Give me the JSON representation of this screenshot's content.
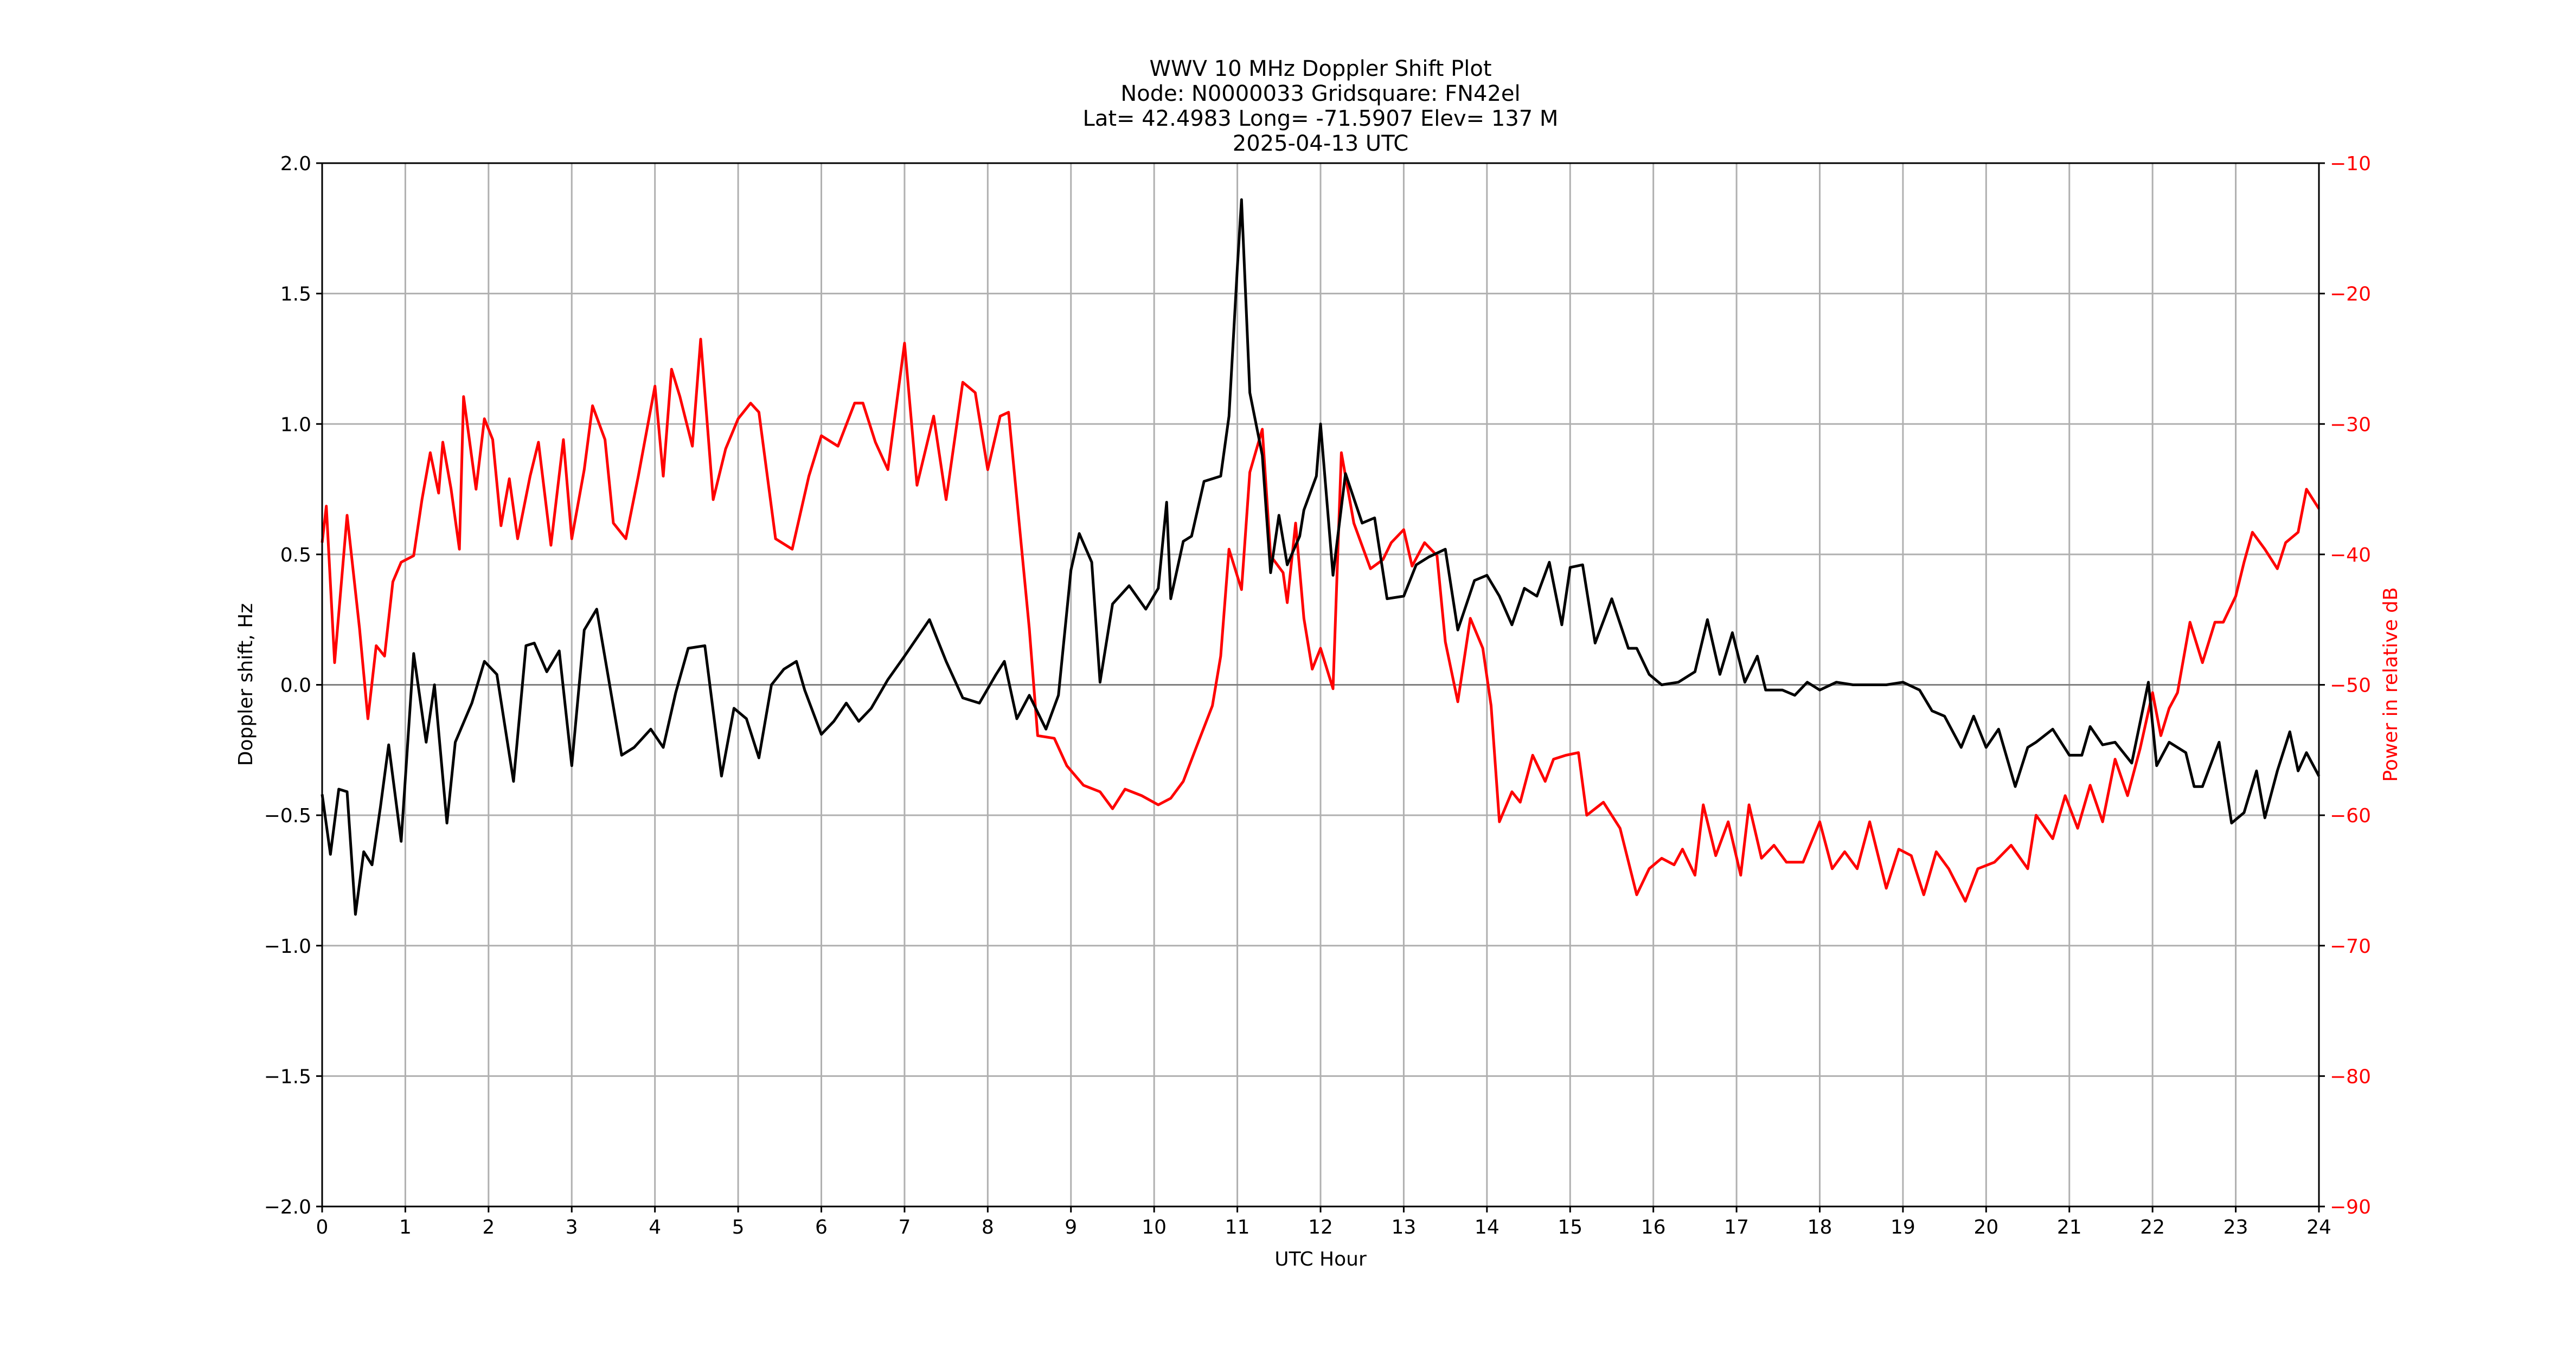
{
  "chart_data": {
    "type": "line",
    "title": "WWV 10 MHz Doppler Shift Plot",
    "subtitle_lines": [
      "Node:  N0000033     Gridsquare:  FN42el",
      "Lat= 42.4983    Long= -71.5907    Elev= 137 M",
      "2025-04-13  UTC"
    ],
    "xlabel": "UTC Hour",
    "ylabel": "Doppler shift, Hz",
    "y2label": "Power in relative dB",
    "xlim": [
      0,
      24
    ],
    "ylim": [
      -2.0,
      2.0
    ],
    "y2lim": [
      -90,
      -10
    ],
    "xticks": [
      0,
      1,
      2,
      3,
      4,
      5,
      6,
      7,
      8,
      9,
      10,
      11,
      12,
      13,
      14,
      15,
      16,
      17,
      18,
      19,
      20,
      21,
      22,
      23,
      24
    ],
    "yticks": [
      "2.0",
      "1.5",
      "1.0",
      "0.5",
      "0.0",
      "−0.5",
      "−1.0",
      "−1.5",
      "−2.0"
    ],
    "y2ticks": [
      "−10",
      "−20",
      "−30",
      "−40",
      "−50",
      "−60",
      "−70",
      "−80",
      "−90"
    ],
    "grid": true,
    "colors": {
      "doppler": "#000000",
      "power": "#ff0000",
      "grid": "#b0b0b0",
      "zero_line": "#808080"
    },
    "series": [
      {
        "name": "Doppler shift (Hz)",
        "axis": "left",
        "color": "#000000",
        "x": [
          0,
          0.1,
          0.2,
          0.3,
          0.4,
          0.5,
          0.6,
          0.7,
          0.8,
          0.95,
          1.1,
          1.25,
          1.35,
          1.5,
          1.6,
          1.8,
          1.95,
          2.1,
          2.3,
          2.45,
          2.55,
          2.7,
          2.85,
          3.0,
          3.15,
          3.3,
          3.45,
          3.6,
          3.75,
          3.95,
          4.1,
          4.25,
          4.4,
          4.6,
          4.8,
          4.95,
          5.1,
          5.25,
          5.4,
          5.55,
          5.7,
          5.8,
          6.0,
          6.15,
          6.3,
          6.45,
          6.6,
          6.8,
          7.0,
          7.3,
          7.5,
          7.7,
          7.9,
          8.1,
          8.2,
          8.35,
          8.5,
          8.7,
          8.85,
          9.0,
          9.1,
          9.25,
          9.35,
          9.5,
          9.7,
          9.9,
          10.05,
          10.15,
          10.2,
          10.35,
          10.45,
          10.6,
          10.8,
          10.9,
          11.0,
          11.05,
          11.15,
          11.3,
          11.4,
          11.5,
          11.6,
          11.75,
          11.8,
          11.95,
          12.0,
          12.15,
          12.3,
          12.5,
          12.65,
          12.8,
          13.0,
          13.15,
          13.3,
          13.5,
          13.65,
          13.85,
          14.0,
          14.15,
          14.3,
          14.45,
          14.6,
          14.75,
          14.9,
          15.0,
          15.15,
          15.3,
          15.5,
          15.7,
          15.8,
          15.95,
          16.1,
          16.3,
          16.5,
          16.65,
          16.8,
          16.95,
          17.1,
          17.25,
          17.35,
          17.55,
          17.7,
          17.85,
          18.0,
          18.2,
          18.4,
          18.6,
          18.8,
          19.0,
          19.2,
          19.35,
          19.5,
          19.7,
          19.85,
          20.0,
          20.15,
          20.35,
          20.5,
          20.6,
          20.8,
          21.0,
          21.15,
          21.25,
          21.4,
          21.55,
          21.75,
          21.95,
          22.05,
          22.2,
          22.4,
          22.5,
          22.6,
          22.8,
          22.95,
          23.1,
          23.25,
          23.35,
          23.5,
          23.65,
          23.75,
          23.85,
          24.0
        ],
        "values": [
          -0.42,
          -0.65,
          -0.4,
          -0.41,
          -0.88,
          -0.64,
          -0.69,
          -0.47,
          -0.23,
          -0.6,
          0.12,
          -0.22,
          0.0,
          -0.53,
          -0.22,
          -0.07,
          0.09,
          0.04,
          -0.37,
          0.15,
          0.16,
          0.05,
          0.13,
          -0.31,
          0.21,
          0.29,
          0.01,
          -0.27,
          -0.24,
          -0.17,
          -0.24,
          -0.03,
          0.14,
          0.15,
          -0.35,
          -0.09,
          -0.13,
          -0.28,
          0.0,
          0.06,
          0.09,
          -0.02,
          -0.19,
          -0.14,
          -0.07,
          -0.14,
          -0.09,
          0.02,
          0.11,
          0.25,
          0.09,
          -0.05,
          -0.07,
          0.04,
          0.09,
          -0.13,
          -0.04,
          -0.17,
          -0.04,
          0.44,
          0.58,
          0.47,
          0.01,
          0.31,
          0.38,
          0.29,
          0.37,
          0.7,
          0.33,
          0.55,
          0.57,
          0.78,
          0.8,
          1.03,
          1.6,
          1.86,
          1.12,
          0.88,
          0.43,
          0.65,
          0.46,
          0.57,
          0.67,
          0.8,
          1.0,
          0.42,
          0.81,
          0.62,
          0.64,
          0.33,
          0.34,
          0.46,
          0.49,
          0.52,
          0.21,
          0.4,
          0.42,
          0.34,
          0.23,
          0.37,
          0.34,
          0.47,
          0.23,
          0.45,
          0.46,
          0.16,
          0.33,
          0.14,
          0.14,
          0.04,
          0.0,
          0.01,
          0.05,
          0.25,
          0.04,
          0.2,
          0.01,
          0.11,
          -0.02,
          -0.02,
          -0.04,
          0.01,
          -0.02,
          0.01,
          0.0,
          0.0,
          0.0,
          0.01,
          -0.02,
          -0.1,
          -0.12,
          -0.24,
          -0.12,
          -0.24,
          -0.17,
          -0.39,
          -0.24,
          -0.22,
          -0.17,
          -0.27,
          -0.27,
          -0.16,
          -0.23,
          -0.22,
          -0.3,
          0.01,
          -0.31,
          -0.22,
          -0.26,
          -0.39,
          -0.39,
          -0.22,
          -0.53,
          -0.49,
          -0.33,
          -0.51,
          -0.33,
          -0.18,
          -0.33,
          -0.26,
          -0.35
        ]
      },
      {
        "name": "Power (relative dB)",
        "axis": "right",
        "color": "#ff0000",
        "x": [
          0,
          0.05,
          0.15,
          0.3,
          0.45,
          0.55,
          0.65,
          0.75,
          0.85,
          0.95,
          1.1,
          1.2,
          1.3,
          1.4,
          1.45,
          1.55,
          1.65,
          1.7,
          1.85,
          1.95,
          2.05,
          2.15,
          2.25,
          2.35,
          2.5,
          2.6,
          2.75,
          2.9,
          3.0,
          3.15,
          3.25,
          3.4,
          3.5,
          3.65,
          3.8,
          4.0,
          4.1,
          4.2,
          4.3,
          4.45,
          4.55,
          4.7,
          4.85,
          5.0,
          5.15,
          5.25,
          5.45,
          5.65,
          5.85,
          6.0,
          6.2,
          6.4,
          6.5,
          6.65,
          6.8,
          7.0,
          7.15,
          7.35,
          7.5,
          7.7,
          7.85,
          8.0,
          8.15,
          8.25,
          8.5,
          8.6,
          8.8,
          8.95,
          9.15,
          9.35,
          9.5,
          9.65,
          9.85,
          10.05,
          10.2,
          10.35,
          10.5,
          10.7,
          10.8,
          10.9,
          11.05,
          11.15,
          11.3,
          11.4,
          11.55,
          11.6,
          11.7,
          11.8,
          11.9,
          12.0,
          12.15,
          12.25,
          12.4,
          12.6,
          12.75,
          12.85,
          13.0,
          13.1,
          13.25,
          13.4,
          13.5,
          13.65,
          13.8,
          13.95,
          14.05,
          14.15,
          14.3,
          14.4,
          14.55,
          14.7,
          14.8,
          14.95,
          15.1,
          15.2,
          15.4,
          15.6,
          15.8,
          15.95,
          16.1,
          16.25,
          16.35,
          16.5,
          16.6,
          16.75,
          16.9,
          17.05,
          17.15,
          17.3,
          17.45,
          17.6,
          17.8,
          18.0,
          18.15,
          18.3,
          18.45,
          18.6,
          18.8,
          18.95,
          19.1,
          19.25,
          19.4,
          19.55,
          19.75,
          19.9,
          20.1,
          20.3,
          20.5,
          20.6,
          20.8,
          20.95,
          21.1,
          21.25,
          21.4,
          21.55,
          21.7,
          21.85,
          22.0,
          22.1,
          22.2,
          22.3,
          22.45,
          22.6,
          22.75,
          22.85,
          23.0,
          23.1,
          23.2,
          23.35,
          23.5,
          23.6,
          23.75,
          23.85,
          24.0
        ],
        "values": [
          -39.1,
          -36.3,
          -48.3,
          -37.0,
          -45.7,
          -52.6,
          -47.0,
          -47.8,
          -42.1,
          -40.6,
          -40.1,
          -35.8,
          -32.2,
          -35.3,
          -31.4,
          -35.0,
          -39.6,
          -27.9,
          -35.0,
          -29.6,
          -31.2,
          -37.8,
          -34.2,
          -38.8,
          -34.0,
          -31.4,
          -39.3,
          -31.2,
          -38.8,
          -33.5,
          -28.6,
          -31.2,
          -37.6,
          -38.8,
          -34.0,
          -27.1,
          -34.0,
          -25.8,
          -27.9,
          -31.7,
          -23.5,
          -35.8,
          -31.9,
          -29.6,
          -28.4,
          -29.1,
          -38.8,
          -39.6,
          -34.0,
          -30.9,
          -31.7,
          -28.4,
          -28.4,
          -31.4,
          -33.5,
          -23.8,
          -34.7,
          -29.4,
          -35.8,
          -26.8,
          -27.6,
          -33.5,
          -29.4,
          -29.1,
          -45.7,
          -53.9,
          -54.1,
          -56.2,
          -57.7,
          -58.2,
          -59.5,
          -58.0,
          -58.5,
          -59.2,
          -58.7,
          -57.4,
          -54.9,
          -51.6,
          -47.8,
          -39.6,
          -42.7,
          -33.7,
          -30.4,
          -40.1,
          -41.4,
          -43.7,
          -37.6,
          -44.9,
          -48.8,
          -47.2,
          -50.3,
          -32.2,
          -37.6,
          -41.1,
          -40.4,
          -39.1,
          -38.1,
          -40.9,
          -39.1,
          -40.1,
          -46.7,
          -51.3,
          -44.9,
          -47.2,
          -51.6,
          -60.5,
          -58.2,
          -59.0,
          -55.4,
          -57.4,
          -55.7,
          -55.4,
          -55.2,
          -60.0,
          -59.0,
          -61.0,
          -66.1,
          -64.1,
          -63.3,
          -63.8,
          -62.6,
          -64.6,
          -59.2,
          -63.1,
          -60.5,
          -64.6,
          -59.2,
          -63.3,
          -62.3,
          -63.6,
          -63.6,
          -60.5,
          -64.1,
          -62.8,
          -64.1,
          -60.5,
          -65.6,
          -62.6,
          -63.1,
          -66.1,
          -62.8,
          -64.1,
          -66.6,
          -64.1,
          -63.6,
          -62.3,
          -64.1,
          -60.0,
          -61.8,
          -58.5,
          -61.0,
          -57.7,
          -60.5,
          -55.7,
          -58.5,
          -54.9,
          -50.6,
          -53.9,
          -51.8,
          -50.6,
          -45.2,
          -48.3,
          -45.2,
          -45.2,
          -43.2,
          -40.6,
          -38.3,
          -39.6,
          -41.1,
          -39.1,
          -38.3,
          -35.0,
          -36.5
        ]
      }
    ]
  }
}
